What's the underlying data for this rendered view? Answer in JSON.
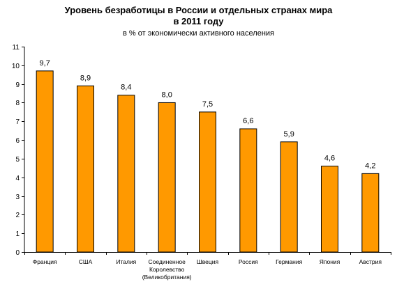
{
  "chart_data": {
    "type": "bar",
    "title": "Уровень безработицы в России и отдельных странах мира\nв 2011 году",
    "subtitle": "в % от экономически активного населения",
    "xlabel": "",
    "ylabel": "",
    "categories": [
      "Франция",
      "США",
      "Италия",
      "Соединенное Королевство (Великобритания)",
      "Швеция",
      "Россия",
      "Германия",
      "Япония",
      "Австрия"
    ],
    "category_lines": [
      [
        "Франция"
      ],
      [
        "США"
      ],
      [
        "Италия"
      ],
      [
        "Соединенное",
        "Королевство",
        "(Великобритания)"
      ],
      [
        "Швеция"
      ],
      [
        "Россия"
      ],
      [
        "Германия"
      ],
      [
        "Япония"
      ],
      [
        "Австрия"
      ]
    ],
    "values": [
      9.7,
      8.9,
      8.4,
      8.0,
      7.5,
      6.6,
      5.9,
      4.6,
      4.2
    ],
    "value_labels": [
      "9,7",
      "8,9",
      "8,4",
      "8,0",
      "7,5",
      "6,6",
      "5,9",
      "4,6",
      "4,2"
    ],
    "ylim": [
      0,
      11
    ],
    "yticks": [
      0,
      1,
      2,
      3,
      4,
      5,
      6,
      7,
      8,
      9,
      10,
      11
    ],
    "grid": false,
    "legend": "none",
    "colors": {
      "bar_fill": "#ff9900",
      "bar_stroke": "#000000",
      "axis": "#000000",
      "text": "#000000"
    }
  }
}
